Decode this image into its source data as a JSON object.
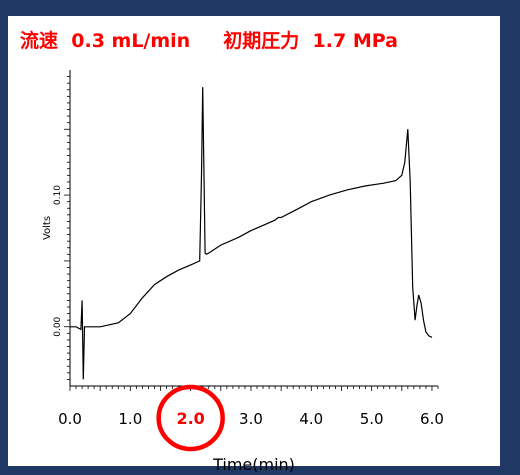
{
  "header": {
    "flow_label": "流速",
    "flow_value": "0.3 mL/min",
    "pressure_label": "初期圧力",
    "pressure_value": "1.7 MPa"
  },
  "colors": {
    "background": "#1f3864",
    "panel": "#ffffff",
    "header_text": "#ff0000",
    "trace": "#000000",
    "highlight_circle": "#ff0000"
  },
  "chart_data": {
    "type": "line",
    "xlabel": "Time(min)",
    "ylabel": "Volts",
    "xlim": [
      0,
      6.1
    ],
    "ylim": [
      -0.045,
      0.195
    ],
    "x_ticks": [
      "0.0",
      "1.0",
      "2.0",
      "3.0",
      "4.0",
      "5.0",
      "6.0"
    ],
    "y_ticks": [
      "0.00",
      "0.10"
    ],
    "highlighted_tick": "2.0",
    "grid": false,
    "x": [
      0.0,
      0.1,
      0.18,
      0.2,
      0.22,
      0.24,
      0.26,
      0.28,
      0.5,
      0.8,
      1.0,
      1.2,
      1.4,
      1.6,
      1.8,
      2.0,
      2.15,
      2.18,
      2.2,
      2.22,
      2.24,
      2.26,
      2.3,
      2.5,
      2.8,
      3.0,
      3.2,
      3.4,
      3.45,
      3.5,
      3.8,
      4.0,
      4.3,
      4.6,
      4.9,
      5.2,
      5.4,
      5.5,
      5.55,
      5.6,
      5.64,
      5.68,
      5.72,
      5.75,
      5.78,
      5.82,
      5.86,
      5.9,
      5.95,
      6.0
    ],
    "y": [
      0.0,
      0.0,
      -0.002,
      0.02,
      -0.04,
      0.0,
      0.0,
      0.0,
      0.0,
      0.003,
      0.01,
      0.022,
      0.032,
      0.038,
      0.043,
      0.047,
      0.05,
      0.115,
      0.182,
      0.12,
      0.056,
      0.055,
      0.056,
      0.062,
      0.068,
      0.073,
      0.077,
      0.081,
      0.083,
      0.083,
      0.09,
      0.095,
      0.1,
      0.104,
      0.107,
      0.109,
      0.111,
      0.115,
      0.125,
      0.15,
      0.11,
      0.03,
      0.005,
      0.016,
      0.024,
      0.018,
      0.005,
      -0.004,
      -0.007,
      -0.008
    ]
  }
}
